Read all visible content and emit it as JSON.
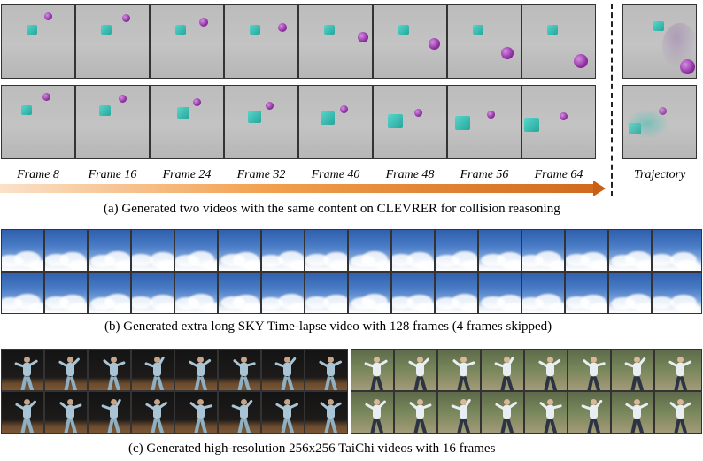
{
  "clevrer": {
    "frame_labels": [
      "Frame 8",
      "Frame 16",
      "Frame 24",
      "Frame 32",
      "Frame 40",
      "Frame 48",
      "Frame 56",
      "Frame 64"
    ],
    "trajectory_label": "Trajectory",
    "caption": "(a) Generated two videos with the same content on CLEVRER for collision reasoning",
    "colors": {
      "cube": "#2fb3a8",
      "ball": "#8a2a9e",
      "arrow": "#e46a1e"
    }
  },
  "sky": {
    "caption": "(b) Generated extra long SKY Time-lapse video with 128 frames (4 frames skipped)"
  },
  "taichi": {
    "caption": "(c) Generated high-resolution 256x256 TaiChi videos with 16 frames"
  }
}
